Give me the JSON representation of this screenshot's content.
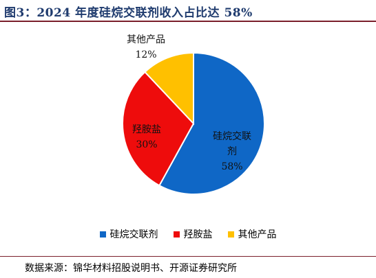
{
  "figure_title": "图3：2024 年度硅烷交联剂收入占比达 58%",
  "source_text": "数据来源：锦华材料招股说明书、开源证券研究所",
  "chart_data": {
    "type": "pie",
    "title": "图3：2024 年度硅烷交联剂收入占比达 58%",
    "slices": [
      {
        "name": "硅烷交联剂",
        "value": 58,
        "label": "58%",
        "color": "#0f67c6"
      },
      {
        "name": "羟胺盐",
        "value": 30,
        "label": "30%",
        "color": "#ee0c0c"
      },
      {
        "name": "其他产品",
        "value": 12,
        "label": "12%",
        "color": "#ffc000"
      }
    ],
    "legend_placement": "bottom"
  }
}
